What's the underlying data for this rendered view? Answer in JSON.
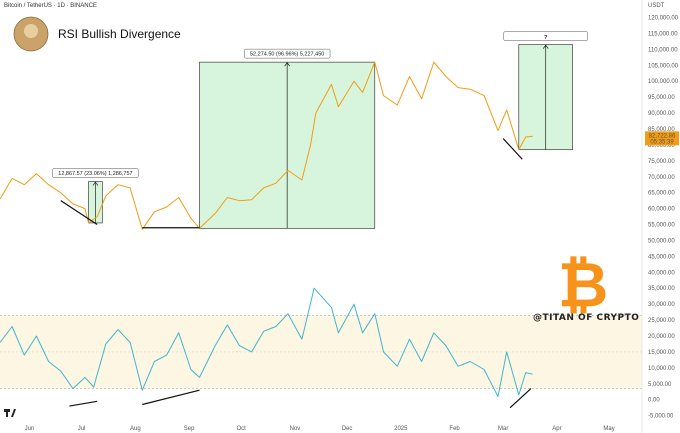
{
  "header": {
    "symbol": "Bitcoin / TetherUS · 1D · BINANCE",
    "currency": "USDT",
    "title": "RSI Bullish Divergence",
    "watermark": "@TITAN OF CRYPTO",
    "question_mark": "?",
    "price_tag": "82,722.86",
    "countdown": "05:35:39"
  },
  "colors": {
    "price_line": "#f39c12",
    "rsi_line": "#3fb6d0",
    "measure_fill": "#d7f5dc",
    "divergence": "#111111",
    "bitcoin_logo": "#f7931a",
    "rsi_band": "#fdf6e3"
  },
  "axes": {
    "x_ticks": [
      "Jun",
      "Jul",
      "Aug",
      "Sep",
      "Oct",
      "Nov",
      "Dec",
      "2025",
      "Feb",
      "Mar",
      "Apr",
      "May"
    ],
    "y_ticks": [
      "120,000.00",
      "115,000.00",
      "110,000.00",
      "105,000.00",
      "100,000.00",
      "95,000.00",
      "90,000.00",
      "85,000.00",
      "80,000.00",
      "75,000.00",
      "70,000.00",
      "65,000.00",
      "60,000.00",
      "55,000.00",
      "50,000.00",
      "45,000.00",
      "40,000.00",
      "35,000.00",
      "30,000.00",
      "25,000.00",
      "20,000.00",
      "15,000.00",
      "10,000.00",
      "5,000.00",
      "0.00",
      "-5,000.00"
    ]
  },
  "measures": [
    {
      "label": "12,867.57 (23.06%) 1,286,757"
    },
    {
      "label": "52,274.50 (96.96%) 5,227,450"
    }
  ],
  "chart_data": {
    "type": "line",
    "title": "RSI Bullish Divergence",
    "x_range": [
      "2024-05-15",
      "2025-05-20"
    ],
    "ylim": [
      -7000,
      123000
    ],
    "series": [
      {
        "key": "price",
        "points": [
          [
            "2024-05-15",
            63000
          ],
          [
            "2024-05-22",
            69500
          ],
          [
            "2024-05-29",
            67500
          ],
          [
            "2024-06-05",
            71000
          ],
          [
            "2024-06-12",
            67500
          ],
          [
            "2024-06-19",
            65000
          ],
          [
            "2024-06-26",
            61500
          ],
          [
            "2024-07-03",
            60000
          ],
          [
            "2024-07-05",
            55500
          ],
          [
            "2024-07-10",
            57500
          ],
          [
            "2024-07-15",
            64000
          ],
          [
            "2024-07-22",
            67500
          ],
          [
            "2024-07-29",
            66500
          ],
          [
            "2024-08-05",
            53500
          ],
          [
            "2024-08-12",
            59000
          ],
          [
            "2024-08-19",
            60500
          ],
          [
            "2024-08-26",
            63500
          ],
          [
            "2024-09-02",
            57000
          ],
          [
            "2024-09-07",
            53800
          ],
          [
            "2024-09-16",
            58500
          ],
          [
            "2024-09-23",
            63500
          ],
          [
            "2024-09-30",
            62500
          ],
          [
            "2024-10-07",
            62800
          ],
          [
            "2024-10-14",
            66500
          ],
          [
            "2024-10-21",
            68000
          ],
          [
            "2024-10-28",
            72000
          ],
          [
            "2024-11-05",
            69000
          ],
          [
            "2024-11-10",
            80000
          ],
          [
            "2024-11-13",
            90000
          ],
          [
            "2024-11-22",
            99000
          ],
          [
            "2024-11-26",
            92000
          ],
          [
            "2024-12-05",
            100000
          ],
          [
            "2024-12-10",
            96500
          ],
          [
            "2024-12-17",
            106000
          ],
          [
            "2024-12-22",
            95500
          ],
          [
            "2024-12-30",
            92500
          ],
          [
            "2025-01-06",
            101500
          ],
          [
            "2025-01-13",
            94500
          ],
          [
            "2025-01-20",
            106000
          ],
          [
            "2025-01-27",
            101500
          ],
          [
            "2025-02-03",
            98000
          ],
          [
            "2025-02-10",
            97500
          ],
          [
            "2025-02-18",
            95500
          ],
          [
            "2025-02-26",
            84500
          ],
          [
            "2025-03-03",
            91000
          ],
          [
            "2025-03-10",
            78500
          ],
          [
            "2025-03-14",
            82500
          ],
          [
            "2025-03-18",
            82700
          ]
        ]
      },
      {
        "key": "rsi",
        "points": [
          [
            "2024-05-15",
            18000
          ],
          [
            "2024-05-22",
            23000
          ],
          [
            "2024-05-29",
            14000
          ],
          [
            "2024-06-05",
            20000
          ],
          [
            "2024-06-12",
            12000
          ],
          [
            "2024-06-19",
            9000
          ],
          [
            "2024-06-26",
            3500
          ],
          [
            "2024-07-03",
            7000
          ],
          [
            "2024-07-08",
            4000
          ],
          [
            "2024-07-15",
            17500
          ],
          [
            "2024-07-22",
            22000
          ],
          [
            "2024-07-29",
            18000
          ],
          [
            "2024-08-05",
            3000
          ],
          [
            "2024-08-12",
            12000
          ],
          [
            "2024-08-19",
            14000
          ],
          [
            "2024-08-26",
            21000
          ],
          [
            "2024-09-02",
            9500
          ],
          [
            "2024-09-07",
            7000
          ],
          [
            "2024-09-16",
            17000
          ],
          [
            "2024-09-23",
            23500
          ],
          [
            "2024-09-30",
            17000
          ],
          [
            "2024-10-07",
            15000
          ],
          [
            "2024-10-14",
            21500
          ],
          [
            "2024-10-21",
            23000
          ],
          [
            "2024-10-28",
            27000
          ],
          [
            "2024-11-05",
            19000
          ],
          [
            "2024-11-12",
            35000
          ],
          [
            "2024-11-22",
            29000
          ],
          [
            "2024-11-26",
            21000
          ],
          [
            "2024-12-05",
            30000
          ],
          [
            "2024-12-10",
            21000
          ],
          [
            "2024-12-17",
            27000
          ],
          [
            "2024-12-22",
            15000
          ],
          [
            "2024-12-30",
            10500
          ],
          [
            "2025-01-06",
            19000
          ],
          [
            "2025-01-13",
            12000
          ],
          [
            "2025-01-20",
            21000
          ],
          [
            "2025-01-27",
            17000
          ],
          [
            "2025-02-03",
            10500
          ],
          [
            "2025-02-10",
            12000
          ],
          [
            "2025-02-18",
            9500
          ],
          [
            "2025-02-26",
            1000
          ],
          [
            "2025-03-03",
            15000
          ],
          [
            "2025-03-10",
            1500
          ],
          [
            "2025-03-14",
            8500
          ],
          [
            "2025-03-18",
            8000
          ]
        ]
      }
    ],
    "rsi_band": [
      3500,
      26500
    ],
    "rsi_midline": 15000,
    "measures": [
      {
        "from": [
          "2024-07-05",
          55500
        ],
        "to": [
          "2024-07-13",
          68500
        ]
      },
      {
        "from": [
          "2024-09-07",
          53800
        ],
        "to": [
          "2024-12-17",
          106000
        ]
      },
      {
        "from": [
          "2025-03-10",
          78500
        ],
        "to": [
          "2025-04-10",
          111500
        ]
      }
    ],
    "divergence_lines": [
      {
        "from": [
          "2024-06-19",
          62500
        ],
        "to": [
          "2024-07-10",
          55000
        ]
      },
      {
        "from": [
          "2024-08-05",
          54000
        ],
        "to": [
          "2024-09-07",
          54000
        ]
      },
      {
        "from": [
          "2025-03-01",
          82000
        ],
        "to": [
          "2025-03-12",
          75500
        ]
      },
      {
        "from": [
          "2024-06-24",
          -2000
        ],
        "to": [
          "2024-07-10",
          -500
        ]
      },
      {
        "from": [
          "2024-08-05",
          -1500
        ],
        "to": [
          "2024-09-07",
          3000
        ]
      },
      {
        "from": [
          "2025-03-05",
          -2500
        ],
        "to": [
          "2025-03-17",
          3500
        ]
      }
    ]
  }
}
